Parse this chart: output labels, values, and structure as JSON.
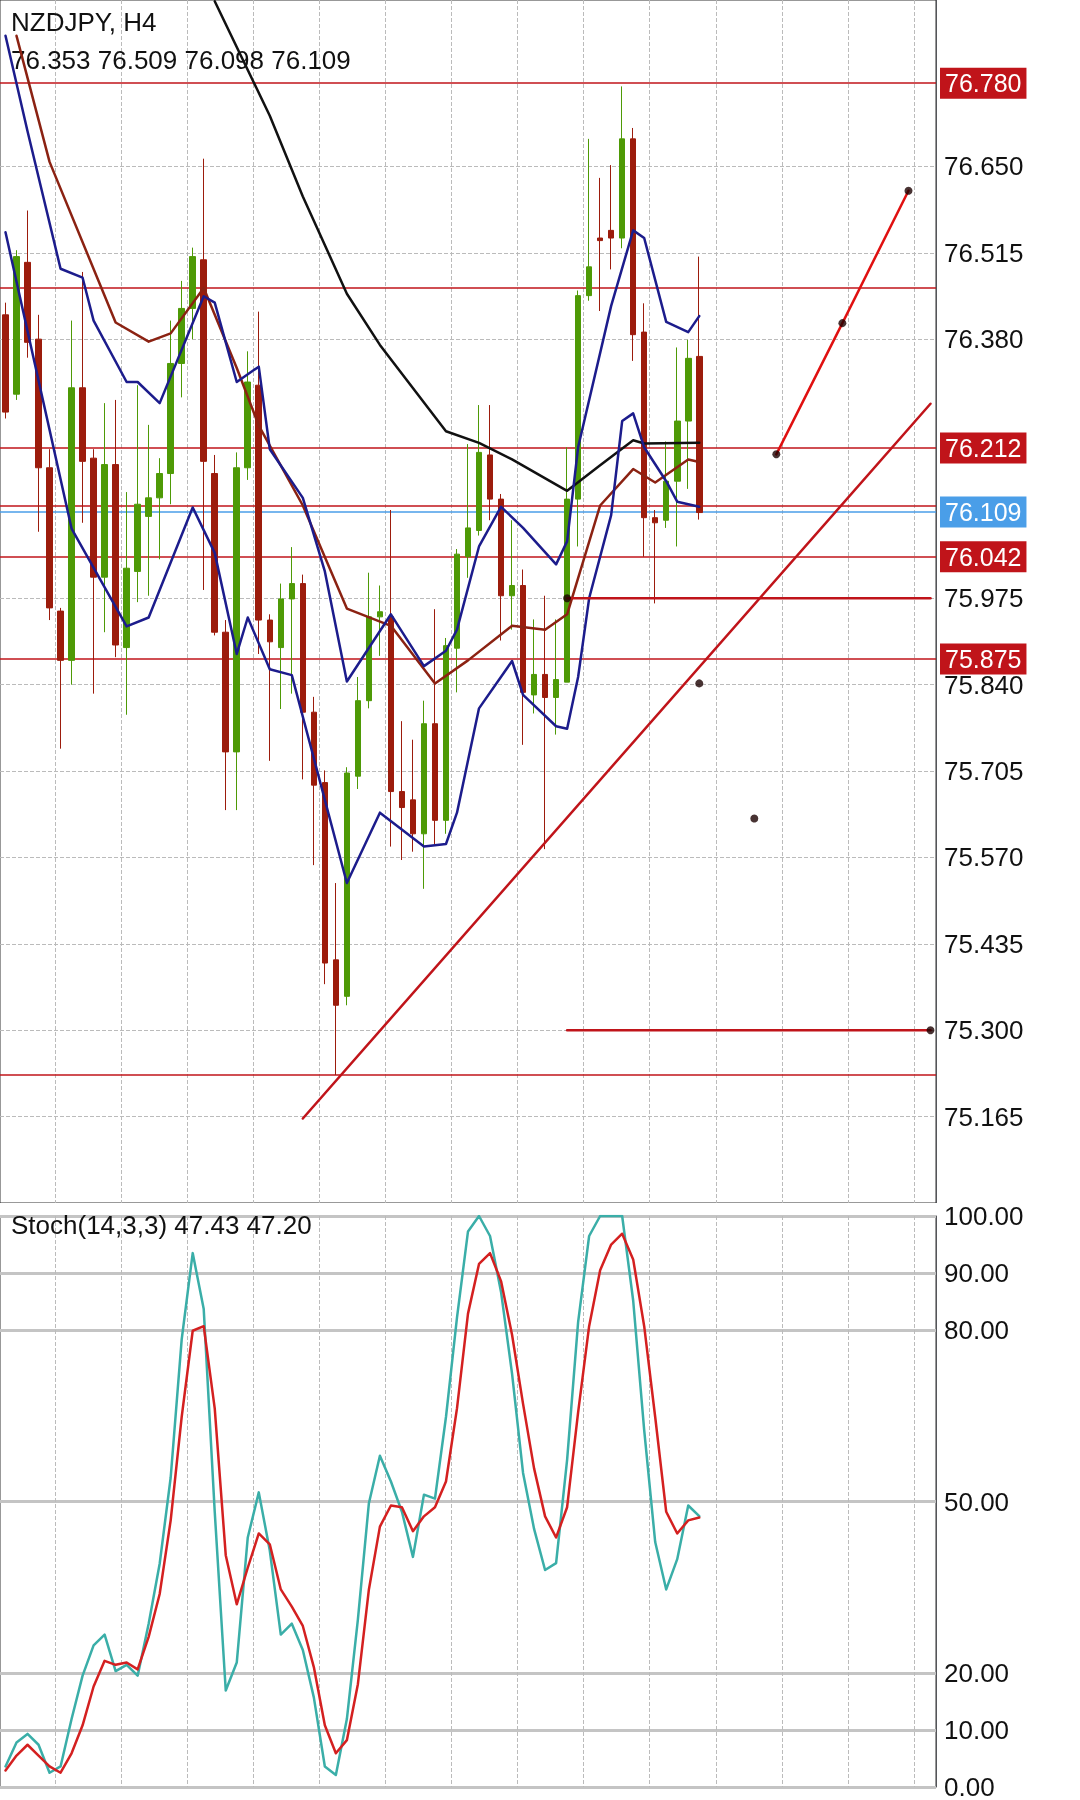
{
  "chart_data": [
    {
      "type": "candlestick",
      "title": "NZDJPY, H4",
      "subtitle": "76.353 76.509 76.098 76.109",
      "grid": true,
      "tick_labels": "y",
      "categories": [
        null,
        null,
        null,
        null,
        null,
        null,
        null,
        null,
        null,
        null,
        null,
        null,
        null,
        null,
        null,
        null,
        null,
        null,
        null,
        null,
        null,
        null,
        null,
        null,
        null,
        null,
        null,
        null,
        null,
        null,
        null,
        null,
        null,
        null,
        null,
        null,
        null,
        null,
        null,
        null,
        null,
        null,
        null,
        null,
        null,
        null,
        null,
        null,
        null,
        null,
        null,
        null,
        null,
        null,
        null,
        null,
        null,
        null,
        null,
        null,
        null,
        null,
        null,
        null,
        null,
        null,
        null,
        null,
        null,
        null,
        null,
        null,
        null,
        null,
        null,
        null,
        null,
        null,
        null,
        null,
        null,
        null,
        null,
        null,
        null
      ],
      "ylim": [
        75.03,
        76.91
      ],
      "yticks": [
        {
          "value": 75.165,
          "label": "75.165"
        },
        {
          "value": 75.3,
          "label": "75.300"
        },
        {
          "value": 75.435,
          "label": "75.435"
        },
        {
          "value": 75.57,
          "label": "75.570"
        },
        {
          "value": 75.705,
          "label": "75.705"
        },
        {
          "value": 75.84,
          "label": "75.840"
        },
        {
          "value": 75.975,
          "label": "75.975"
        },
        {
          "value": 76.38,
          "label": "76.380"
        },
        {
          "value": 76.515,
          "label": "76.515"
        },
        {
          "value": 76.65,
          "label": "76.650"
        }
      ],
      "ohlc": [
        [
          76.418,
          76.437,
          76.256,
          76.266
        ],
        [
          76.294,
          76.519,
          76.285,
          76.509
        ],
        [
          76.5,
          76.581,
          76.351,
          76.375
        ],
        [
          76.38,
          76.418,
          76.079,
          76.179
        ],
        [
          76.179,
          76.208,
          75.941,
          75.96
        ],
        [
          75.955,
          75.96,
          75.74,
          75.878
        ],
        [
          75.878,
          76.409,
          75.84,
          76.304
        ],
        [
          76.304,
          76.485,
          76.093,
          76.189
        ],
        [
          76.194,
          76.208,
          75.826,
          76.008
        ],
        [
          76.008,
          76.28,
          75.922,
          76.184
        ],
        [
          76.184,
          76.285,
          75.883,
          75.902
        ],
        [
          75.898,
          76.141,
          75.793,
          76.022
        ],
        [
          76.017,
          76.308,
          75.969,
          76.122
        ],
        [
          76.103,
          76.246,
          75.979,
          76.132
        ],
        [
          76.132,
          76.194,
          76.036,
          76.17
        ],
        [
          76.17,
          76.409,
          76.122,
          76.342
        ],
        [
          76.342,
          76.471,
          76.289,
          76.428
        ],
        [
          76.428,
          76.523,
          76.38,
          76.509
        ],
        [
          76.504,
          76.662,
          75.988,
          76.189
        ],
        [
          76.17,
          76.199,
          75.917,
          75.922
        ],
        [
          75.922,
          75.941,
          75.644,
          75.735
        ],
        [
          75.735,
          76.203,
          75.644,
          76.179
        ],
        [
          76.179,
          76.361,
          76.16,
          76.313
        ],
        [
          76.308,
          76.423,
          75.888,
          75.941
        ],
        [
          75.941,
          75.95,
          75.721,
          75.907
        ],
        [
          75.898,
          75.998,
          75.802,
          75.974
        ],
        [
          75.974,
          76.055,
          75.826,
          75.998
        ],
        [
          75.998,
          76.012,
          75.692,
          75.797
        ],
        [
          75.797,
          75.821,
          75.558,
          75.683
        ],
        [
          75.687,
          75.706,
          75.372,
          75.405
        ],
        [
          75.41,
          75.53,
          75.23,
          75.339
        ],
        [
          75.353,
          75.711,
          75.339,
          75.702
        ],
        [
          75.697,
          75.852,
          75.677,
          75.815
        ],
        [
          75.815,
          76.015,
          75.803,
          75.946
        ],
        [
          75.946,
          75.995,
          75.885,
          75.954
        ],
        [
          75.946,
          76.113,
          75.587,
          75.673
        ],
        [
          75.673,
          75.783,
          75.566,
          75.648
        ],
        [
          75.66,
          75.754,
          75.579,
          75.607
        ],
        [
          75.607,
          75.815,
          75.521,
          75.779
        ],
        [
          75.779,
          75.958,
          75.591,
          75.628
        ],
        [
          75.628,
          75.913,
          75.607,
          75.901
        ],
        [
          75.897,
          76.052,
          75.828,
          76.044
        ],
        [
          76.04,
          76.216,
          76.007,
          76.085
        ],
        [
          76.081,
          76.277,
          76.073,
          76.203
        ],
        [
          76.199,
          76.277,
          76.097,
          76.13
        ],
        [
          76.13,
          76.138,
          75.909,
          75.979
        ],
        [
          75.979,
          76.097,
          75.926,
          75.995
        ],
        [
          75.995,
          76.02,
          75.746,
          75.828
        ],
        [
          75.824,
          75.942,
          75.795,
          75.856
        ],
        [
          75.856,
          75.979,
          75.583,
          75.82
        ],
        [
          75.82,
          75.942,
          75.762,
          75.848
        ],
        [
          75.844,
          76.211,
          75.844,
          76.13
        ],
        [
          76.13,
          76.456,
          76.056,
          76.448
        ],
        [
          76.448,
          76.693,
          76.44,
          76.493
        ],
        [
          76.538,
          76.632,
          76.424,
          76.534
        ],
        [
          76.55,
          76.652,
          76.489,
          76.538
        ],
        [
          76.538,
          76.775,
          76.522,
          76.693
        ],
        [
          76.693,
          76.71,
          76.346,
          76.387
        ],
        [
          76.391,
          76.436,
          76.04,
          76.101
        ],
        [
          76.101,
          76.113,
          75.967,
          76.093
        ],
        [
          76.097,
          76.22,
          76.085,
          76.158
        ],
        [
          76.158,
          76.367,
          76.056,
          76.252
        ],
        [
          76.252,
          76.379,
          76.146,
          76.35
        ],
        [
          76.353,
          76.509,
          76.098,
          76.109
        ],
        null,
        null,
        null,
        null,
        null,
        null,
        null,
        null,
        null,
        null,
        null,
        null,
        null,
        null,
        null,
        null,
        null,
        null,
        null,
        null,
        null
      ],
      "colors": [
        "#9c1c0c",
        "#4e9a06",
        "#9c1c0c",
        "#9c1c0c",
        "#9c1c0c",
        "#9c1c0c",
        "#4e9a06",
        "#9c1c0c",
        "#9c1c0c",
        "#4e9a06",
        "#9c1c0c",
        "#4e9a06",
        "#4e9a06",
        "#4e9a06",
        "#4e9a06",
        "#4e9a06",
        "#4e9a06",
        "#4e9a06",
        "#9c1c0c",
        "#9c1c0c",
        "#9c1c0c",
        "#4e9a06",
        "#4e9a06",
        "#9c1c0c",
        "#9c1c0c",
        "#4e9a06",
        "#4e9a06",
        "#9c1c0c",
        "#9c1c0c",
        "#9c1c0c",
        "#9c1c0c",
        "#4e9a06",
        "#4e9a06",
        "#4e9a06",
        "#4e9a06",
        "#9c1c0c",
        "#9c1c0c",
        "#9c1c0c",
        "#4e9a06",
        "#9c1c0c",
        "#4e9a06",
        "#4e9a06",
        "#4e9a06",
        "#4e9a06",
        "#9c1c0c",
        "#9c1c0c",
        "#4e9a06",
        "#9c1c0c",
        "#4e9a06",
        "#9c1c0c",
        "#4e9a06",
        "#4e9a06",
        "#4e9a06",
        "#4e9a06",
        "#9c1c0c",
        "#9c1c0c",
        "#4e9a06",
        "#9c1c0c",
        "#9c1c0c",
        "#9c1c0c",
        "#4e9a06",
        "#4e9a06",
        "#4e9a06",
        "#9c1c0c",
        null,
        null,
        null,
        null,
        null,
        null,
        null,
        null,
        null,
        null,
        null,
        null,
        null,
        null,
        null,
        null,
        null,
        null,
        null,
        null,
        null
      ],
      "series": [
        {
          "type": "line",
          "color": "#111111",
          "marker": "none",
          "values": [
            null,
            null,
            null,
            null,
            null,
            null,
            null,
            null,
            null,
            null,
            null,
            null,
            null,
            null,
            null,
            null,
            null,
            null,
            null,
            76.908,
            null,
            null,
            null,
            null,
            76.729,
            null,
            null,
            76.603,
            null,
            null,
            null,
            76.451,
            null,
            null,
            76.371,
            null,
            null,
            null,
            null,
            null,
            76.236,
            null,
            null,
            76.218,
            null,
            null,
            76.192,
            null,
            null,
            null,
            null,
            76.143,
            null,
            null,
            76.183,
            null,
            null,
            76.222,
            76.217,
            null,
            null,
            null,
            null,
            76.218,
            null,
            null,
            null,
            null,
            null,
            null,
            null,
            null,
            null,
            null,
            null,
            null,
            null,
            null,
            null,
            null,
            null,
            null,
            null,
            null,
            null
          ]
        },
        {
          "type": "line",
          "color": "#8b2212",
          "marker": "none",
          "values": [
            null,
            76.854,
            null,
            null,
            76.657,
            null,
            null,
            null,
            null,
            null,
            76.406,
            null,
            null,
            76.376,
            null,
            76.389,
            null,
            null,
            76.46,
            null,
            null,
            76.335,
            null,
            76.245,
            null,
            null,
            null,
            76.12,
            null,
            null,
            null,
            75.959,
            null,
            null,
            null,
            75.932,
            null,
            null,
            null,
            75.842,
            null,
            null,
            75.878,
            null,
            null,
            null,
            75.932,
            null,
            null,
            75.926,
            null,
            75.95,
            null,
            null,
            76.12,
            null,
            null,
            76.177,
            null,
            76.156,
            null,
            null,
            76.192,
            76.188,
            null,
            null,
            null,
            null,
            null,
            null,
            null,
            null,
            null,
            null,
            null,
            null,
            null,
            null,
            null,
            null,
            null,
            null,
            null,
            null,
            null
          ]
        },
        {
          "type": "line",
          "color": "#1c1c8c",
          "marker": "none",
          "values": [
            76.854,
            null,
            76.705,
            null,
            null,
            76.49,
            null,
            76.476,
            76.409,
            null,
            null,
            76.313,
            76.313,
            null,
            76.28,
            null,
            null,
            null,
            76.447,
            76.437,
            null,
            76.313,
            null,
            76.337,
            76.208,
            null,
            null,
            76.132,
            null,
            76.017,
            null,
            75.845,
            null,
            null,
            null,
            75.95,
            null,
            null,
            75.869,
            null,
            75.893,
            75.926,
            null,
            76.056,
            null,
            76.118,
            null,
            76.085,
            null,
            null,
            76.028,
            76.064,
            76.211,
            null,
            null,
            76.432,
            null,
            76.55,
            76.538,
            null,
            76.407,
            null,
            76.391,
            76.416,
            null,
            null,
            null,
            null,
            null,
            null,
            null,
            null,
            null,
            null,
            null,
            null,
            null,
            null,
            null,
            null,
            null,
            null,
            null,
            null,
            null
          ]
        },
        {
          "type": "line",
          "color": "#1c1c8c",
          "marker": "none",
          "values": [
            76.547,
            null,
            null,
            null,
            null,
            null,
            76.084,
            null,
            null,
            null,
            null,
            75.931,
            null,
            75.945,
            null,
            null,
            null,
            76.117,
            null,
            76.046,
            null,
            75.888,
            75.945,
            null,
            75.864,
            null,
            75.855,
            null,
            null,
            null,
            null,
            75.53,
            null,
            null,
            75.64,
            null,
            null,
            null,
            75.587,
            null,
            75.591,
            75.64,
            null,
            75.803,
            null,
            null,
            75.877,
            75.824,
            null,
            null,
            75.775,
            75.771,
            75.852,
            75.975,
            null,
            76.105,
            76.252,
            76.264,
            76.211,
            null,
            76.158,
            76.126,
            null,
            76.118,
            null,
            null,
            null,
            null,
            null,
            null,
            null,
            null,
            null,
            null,
            null,
            null,
            null,
            null,
            null,
            null,
            null,
            null,
            null,
            null,
            null
          ]
        },
        {
          "type": "line",
          "color": "#c0141a",
          "marker": "none",
          "values": [
            null,
            null,
            null,
            null,
            null,
            null,
            null,
            null,
            null,
            null,
            null,
            null,
            null,
            null,
            null,
            null,
            null,
            null,
            null,
            null,
            null,
            null,
            null,
            null,
            null,
            null,
            null,
            75.162,
            null,
            null,
            null,
            null,
            null,
            null,
            null,
            null,
            null,
            null,
            null,
            null,
            null,
            null,
            null,
            null,
            null,
            null,
            null,
            null,
            null,
            null,
            null,
            null,
            null,
            null,
            null,
            null,
            null,
            null,
            null,
            null,
            null,
            null,
            null,
            null,
            null,
            null,
            null,
            null,
            null,
            null,
            null,
            null,
            null,
            null,
            null,
            null,
            null,
            null,
            null,
            null,
            null,
            null,
            null,
            null,
            76.279
          ]
        },
        {
          "type": "line",
          "color": "#c0141a",
          "marker": "none",
          "values": [
            null,
            null,
            null,
            null,
            null,
            null,
            null,
            null,
            null,
            null,
            null,
            null,
            null,
            null,
            null,
            null,
            null,
            null,
            null,
            null,
            null,
            null,
            null,
            null,
            null,
            null,
            null,
            null,
            null,
            null,
            null,
            null,
            null,
            null,
            null,
            null,
            null,
            null,
            null,
            null,
            null,
            null,
            null,
            null,
            null,
            null,
            null,
            null,
            null,
            null,
            null,
            75.975,
            null,
            null,
            null,
            null,
            null,
            null,
            null,
            null,
            null,
            null,
            null,
            null,
            null,
            null,
            null,
            null,
            null,
            null,
            null,
            null,
            null,
            null,
            null,
            null,
            null,
            null,
            null,
            null,
            null,
            null,
            null,
            null,
            75.975
          ]
        },
        {
          "type": "line",
          "color": "#c0141a",
          "marker": "none",
          "values": [
            null,
            null,
            null,
            null,
            null,
            null,
            null,
            null,
            null,
            null,
            null,
            null,
            null,
            null,
            null,
            null,
            null,
            null,
            null,
            null,
            null,
            null,
            null,
            null,
            null,
            null,
            null,
            null,
            null,
            null,
            null,
            null,
            null,
            null,
            null,
            null,
            null,
            null,
            null,
            null,
            null,
            null,
            null,
            null,
            null,
            null,
            null,
            null,
            null,
            null,
            null,
            75.3,
            null,
            null,
            null,
            null,
            null,
            null,
            null,
            null,
            null,
            null,
            null,
            null,
            null,
            null,
            null,
            null,
            null,
            null,
            null,
            null,
            null,
            null,
            null,
            null,
            null,
            null,
            null,
            null,
            null,
            null,
            null,
            null,
            75.3
          ]
        },
        {
          "type": "line",
          "color": "#e01010",
          "marker": "none",
          "values": [
            null,
            null,
            null,
            null,
            null,
            null,
            null,
            null,
            null,
            null,
            null,
            null,
            null,
            null,
            null,
            null,
            null,
            null,
            null,
            null,
            null,
            null,
            null,
            null,
            null,
            null,
            null,
            null,
            null,
            null,
            null,
            null,
            null,
            null,
            null,
            null,
            null,
            null,
            null,
            null,
            null,
            null,
            null,
            null,
            null,
            null,
            null,
            null,
            null,
            null,
            null,
            null,
            null,
            null,
            null,
            null,
            null,
            null,
            null,
            null,
            null,
            null,
            null,
            null,
            null,
            null,
            null,
            null,
            null,
            null,
            76.2,
            null,
            null,
            null,
            null,
            null,
            76.405,
            null,
            null,
            null,
            null,
            null,
            76.612,
            null,
            null
          ]
        },
        {
          "type": "scatter",
          "color": "#1a0000",
          "marker": "circle",
          "values": [
            null,
            null,
            null,
            null,
            null,
            null,
            null,
            null,
            null,
            null,
            null,
            null,
            null,
            null,
            null,
            null,
            null,
            null,
            null,
            null,
            null,
            null,
            null,
            null,
            null,
            null,
            null,
            null,
            null,
            null,
            null,
            null,
            null,
            null,
            null,
            null,
            null,
            null,
            null,
            null,
            null,
            null,
            null,
            null,
            null,
            null,
            null,
            null,
            null,
            null,
            null,
            75.975,
            null,
            null,
            null,
            null,
            null,
            null,
            null,
            null,
            null,
            null,
            null,
            75.842,
            null,
            null,
            null,
            null,
            75.631,
            null,
            76.2,
            null,
            null,
            null,
            null,
            null,
            76.405,
            null,
            null,
            null,
            null,
            null,
            76.612,
            null,
            75.3
          ]
        }
      ],
      "ref_lines": [
        {
          "axis": "y",
          "value": 76.78,
          "label": "76.780",
          "color": "#c0141a"
        },
        {
          "axis": "y",
          "value": 76.458,
          "label": null,
          "color": "#c0141a"
        },
        {
          "axis": "y",
          "value": 76.212,
          "label": "76.212",
          "color": "#c0141a"
        },
        {
          "axis": "y",
          "value": 76.12,
          "label": null,
          "color": "#c0141a"
        },
        {
          "axis": "y",
          "value": 76.109,
          "label": "76.109",
          "color": "#4a9ee8"
        },
        {
          "axis": "y",
          "value": 76.042,
          "label": "76.042",
          "color": "#c0141a"
        },
        {
          "axis": "y",
          "value": 75.875,
          "label": "75.875",
          "color": "#c0141a"
        },
        {
          "axis": "y",
          "value": 75.228,
          "label": null,
          "color": "#c0141a"
        }
      ]
    },
    {
      "type": "line",
      "title": "Stoch(14,3,3) 47.43 47.20",
      "grid": true,
      "tick_labels": "y",
      "marker": "none",
      "categories": [
        null,
        null,
        null,
        null,
        null,
        null,
        null,
        null,
        null,
        null,
        null,
        null,
        null,
        null,
        null,
        null,
        null,
        null,
        null,
        null,
        null,
        null,
        null,
        null,
        null,
        null,
        null,
        null,
        null,
        null,
        null,
        null,
        null,
        null,
        null,
        null,
        null,
        null,
        null,
        null,
        null,
        null,
        null,
        null,
        null,
        null,
        null,
        null,
        null,
        null,
        null,
        null,
        null,
        null,
        null,
        null,
        null,
        null,
        null,
        null,
        null,
        null,
        null,
        null,
        null,
        null,
        null,
        null,
        null,
        null,
        null,
        null,
        null,
        null,
        null,
        null,
        null,
        null,
        null,
        null,
        null,
        null,
        null,
        null,
        null
      ],
      "ylim": [
        0,
        100
      ],
      "yticks": [
        {
          "value": 0,
          "label": "0.00"
        },
        {
          "value": 10,
          "label": "10.00"
        },
        {
          "value": 20,
          "label": "20.00"
        },
        {
          "value": 50,
          "label": "50.00"
        },
        {
          "value": 80,
          "label": "80.00"
        },
        {
          "value": 90,
          "label": "90.00"
        },
        {
          "value": 100,
          "label": "100.00"
        }
      ],
      "series": [
        {
          "color": "#3aaea8",
          "values": [
            3.6,
            7.8,
            9.3,
            7.4,
            2.5,
            3.6,
            11.9,
            19.5,
            24.8,
            26.7,
            20.3,
            21.4,
            19.5,
            28.6,
            39.1,
            54.2,
            78.4,
            93.5,
            83.7,
            48.2,
            16.9,
            21.8,
            43.7,
            51.6,
            41.4,
            26.7,
            28.6,
            24.0,
            15.7,
            3.6,
            2.1,
            11.9,
            29.3,
            49.7,
            58.0,
            53.5,
            48.2,
            40.3,
            51.2,
            50.5,
            64.8,
            82.2,
            97.3,
            100,
            96.5,
            86.7,
            72.4,
            55.0,
            45.2,
            38.0,
            39.2,
            57.3,
            81.4,
            96.5,
            100,
            100,
            100,
            85.2,
            62.5,
            42.9,
            34.6,
            39.9,
            49.3,
            47.43,
            null,
            null,
            null,
            null,
            null,
            null,
            null,
            null,
            null,
            null,
            null,
            null,
            null,
            null,
            null,
            null,
            null,
            null,
            null,
            null,
            null
          ]
        },
        {
          "color": "#d42020",
          "values": [
            2.9,
            5.5,
            7.4,
            5.5,
            3.6,
            2.5,
            5.9,
            10.8,
            17.6,
            22.1,
            21.4,
            21.8,
            20.6,
            26.3,
            33.8,
            46.7,
            64.8,
            79.9,
            80.7,
            66.3,
            40.6,
            32.0,
            38.4,
            44.4,
            42.5,
            34.6,
            31.6,
            28.2,
            21.0,
            10.8,
            5.9,
            8.2,
            18.0,
            34.6,
            45.6,
            49.3,
            49.0,
            44.8,
            47.4,
            49.0,
            53.5,
            66.3,
            82.9,
            91.6,
            93.5,
            88.6,
            79.2,
            67.1,
            55.8,
            47.4,
            43.7,
            49.0,
            65.6,
            80.7,
            90.5,
            95.0,
            96.9,
            92.4,
            80.7,
            64.8,
            48.2,
            44.4,
            46.7,
            47.2,
            null,
            null,
            null,
            null,
            null,
            null,
            null,
            null,
            null,
            null,
            null,
            null,
            null,
            null,
            null,
            null,
            null,
            null,
            null,
            null,
            null
          ]
        }
      ]
    }
  ]
}
